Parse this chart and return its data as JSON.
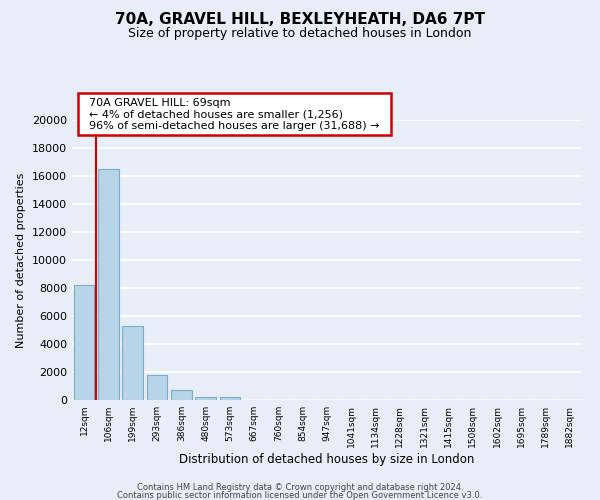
{
  "title": "70A, GRAVEL HILL, BEXLEYHEATH, DA6 7PT",
  "subtitle": "Size of property relative to detached houses in London",
  "xlabel": "Distribution of detached houses by size in London",
  "ylabel": "Number of detached properties",
  "categories": [
    "12sqm",
    "106sqm",
    "199sqm",
    "293sqm",
    "386sqm",
    "480sqm",
    "573sqm",
    "667sqm",
    "760sqm",
    "854sqm",
    "947sqm",
    "1041sqm",
    "1134sqm",
    "1228sqm",
    "1321sqm",
    "1415sqm",
    "1508sqm",
    "1602sqm",
    "1695sqm",
    "1789sqm",
    "1882sqm"
  ],
  "values": [
    8200,
    16500,
    5300,
    1800,
    750,
    250,
    200,
    0,
    0,
    0,
    0,
    0,
    0,
    0,
    0,
    0,
    0,
    0,
    0,
    0,
    0
  ],
  "bar_color": "#b8d4e8",
  "bar_edge_color": "#7aaec8",
  "marker_color": "#cc0000",
  "ylim": [
    0,
    20000
  ],
  "yticks": [
    0,
    2000,
    4000,
    6000,
    8000,
    10000,
    12000,
    14000,
    16000,
    18000,
    20000
  ],
  "annotation_title": "70A GRAVEL HILL: 69sqm",
  "annotation_line1": "← 4% of detached houses are smaller (1,256)",
  "annotation_line2": "96% of semi-detached houses are larger (31,688) →",
  "annotation_box_color": "#ffffff",
  "annotation_box_edge": "#cc0000",
  "footer_line1": "Contains HM Land Registry data © Crown copyright and database right 2024.",
  "footer_line2": "Contains public sector information licensed under the Open Government Licence v3.0.",
  "background_color": "#e8eef8",
  "grid_color": "#c8d4e4",
  "title_fontsize": 11,
  "subtitle_fontsize": 9
}
